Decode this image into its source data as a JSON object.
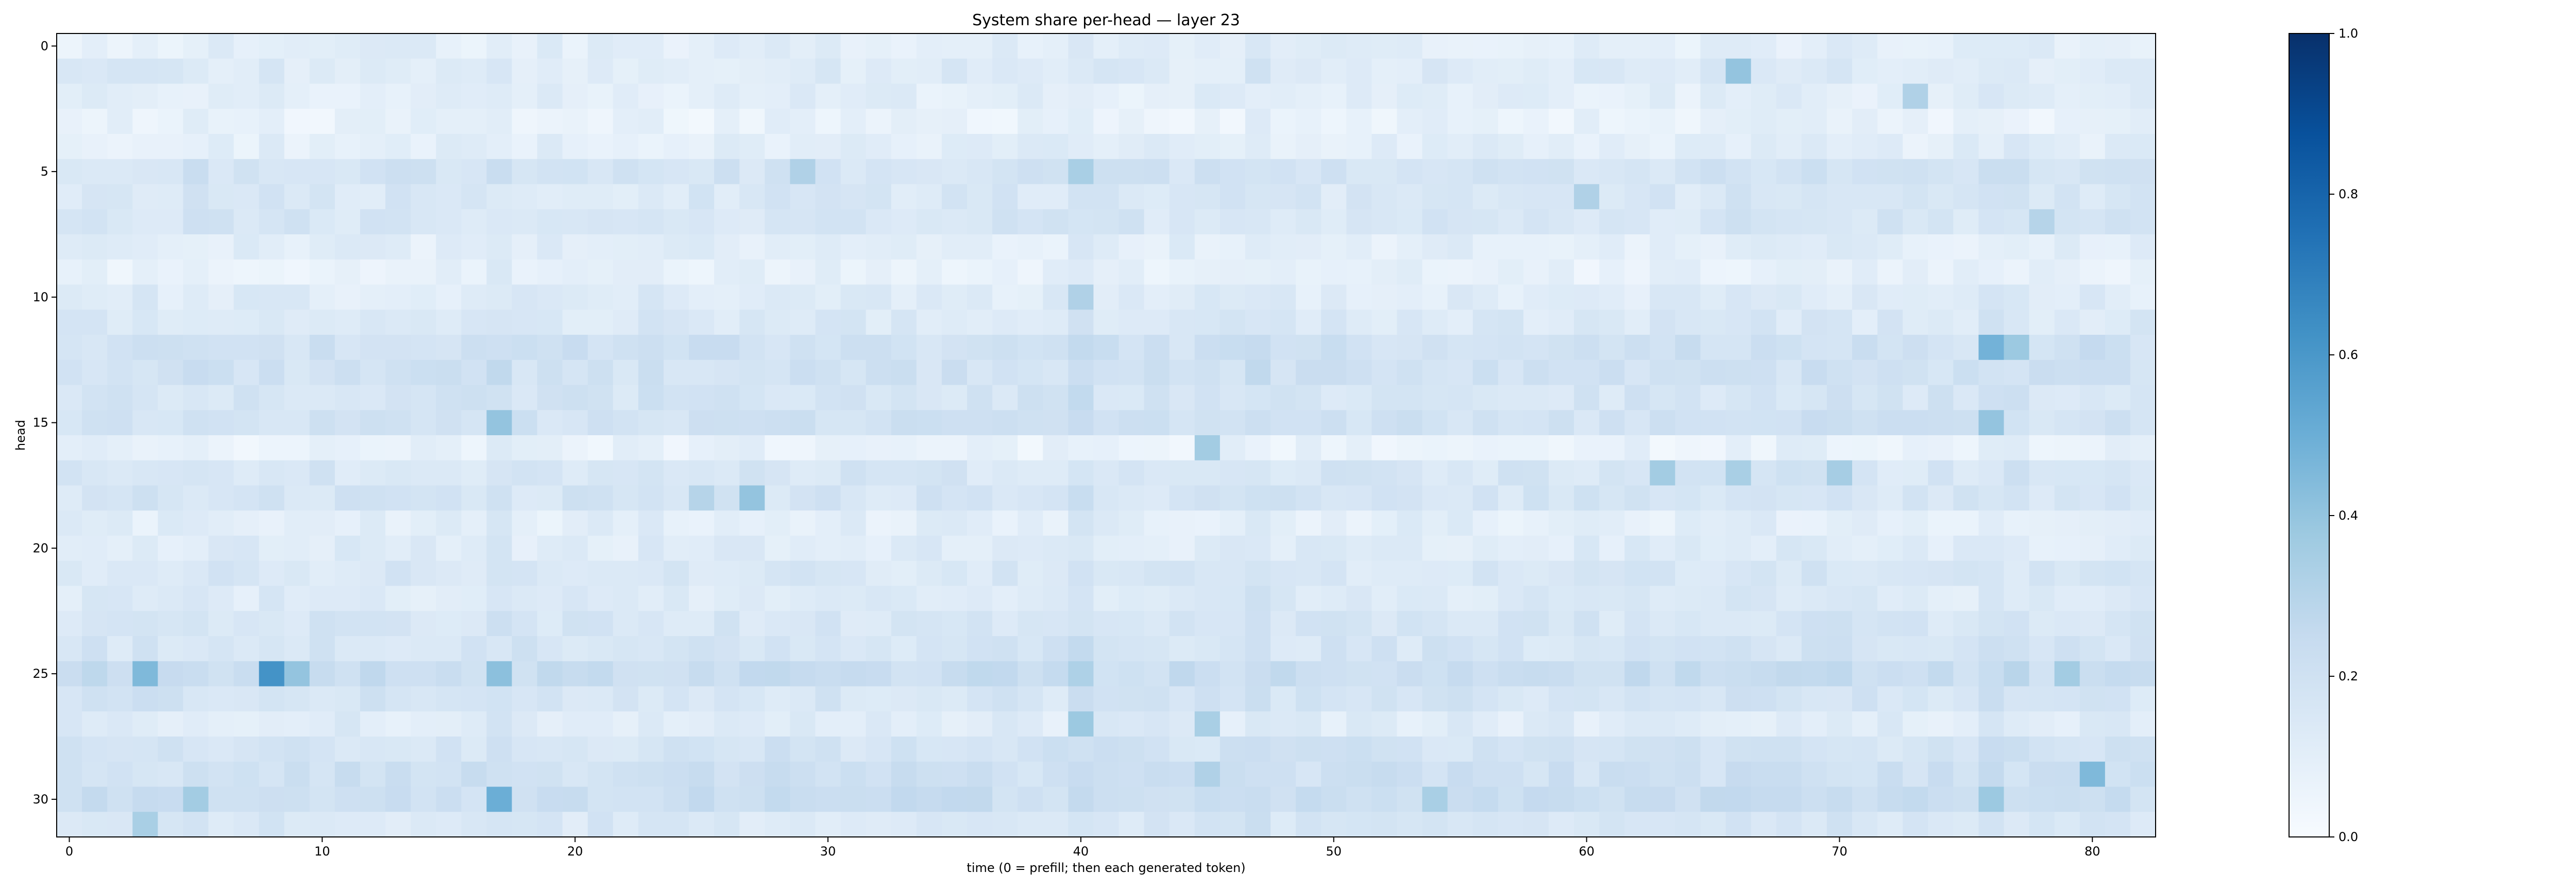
{
  "chart_data": {
    "type": "heatmap",
    "title": "System share per-head — layer 23",
    "xlabel": "time (0 = prefill; then each generated token)",
    "ylabel": "head",
    "x_range": [
      0,
      82
    ],
    "y_range": [
      0,
      31
    ],
    "x_ticks": [
      0,
      10,
      20,
      30,
      40,
      50,
      60,
      70,
      80
    ],
    "y_ticks": [
      0,
      5,
      10,
      15,
      20,
      25,
      30
    ],
    "colorbar": {
      "min": 0.0,
      "max": 1.0,
      "ticks": [
        "0.0",
        "0.2",
        "0.4",
        "0.6",
        "0.8",
        "1.0"
      ],
      "colormap": "Blues"
    },
    "n_cols": 83,
    "n_rows": 32,
    "base_level": 0.12,
    "row_levels": [
      0.1,
      0.13,
      0.1,
      0.07,
      0.1,
      0.18,
      0.15,
      0.16,
      0.1,
      0.08,
      0.12,
      0.14,
      0.2,
      0.19,
      0.17,
      0.19,
      0.07,
      0.16,
      0.17,
      0.1,
      0.12,
      0.15,
      0.13,
      0.16,
      0.17,
      0.23,
      0.17,
      0.12,
      0.18,
      0.2,
      0.22,
      0.15
    ],
    "col_levels": [
      0.0,
      0.0,
      0.0,
      0.01,
      0.0,
      0.01,
      0.0,
      0.0,
      0.01,
      0.0,
      0.0,
      0.0,
      0.0,
      0.0,
      0.0,
      0.0,
      0.0,
      0.03,
      0.0,
      0.0,
      0.0,
      0.0,
      0.0,
      0.01,
      0.0,
      0.0,
      0.0,
      0.0,
      0.0,
      0.0,
      0.0,
      0.0,
      0.0,
      0.0,
      0.0,
      0.0,
      0.0,
      0.0,
      0.0,
      0.0,
      0.05,
      0.0,
      0.0,
      0.0,
      0.0,
      0.0,
      0.0,
      0.04,
      0.0,
      0.0,
      0.0,
      0.0,
      0.0,
      0.0,
      0.0,
      0.0,
      0.0,
      0.0,
      0.0,
      0.0,
      0.0,
      0.0,
      0.0,
      0.0,
      0.0,
      0.0,
      0.01,
      0.01,
      0.01,
      0.01,
      0.01,
      0.0,
      0.0,
      0.0,
      0.0,
      0.0,
      0.02,
      0.02,
      0.0,
      0.0,
      0.01,
      0.0,
      0.0
    ],
    "hotspots": [
      {
        "x": 3,
        "y": 25,
        "v": 0.45
      },
      {
        "x": 8,
        "y": 25,
        "v": 0.62
      },
      {
        "x": 9,
        "y": 25,
        "v": 0.4
      },
      {
        "x": 17,
        "y": 25,
        "v": 0.42
      },
      {
        "x": 17,
        "y": 15,
        "v": 0.4
      },
      {
        "x": 17,
        "y": 30,
        "v": 0.5
      },
      {
        "x": 27,
        "y": 18,
        "v": 0.4
      },
      {
        "x": 25,
        "y": 18,
        "v": 0.3
      },
      {
        "x": 29,
        "y": 5,
        "v": 0.32
      },
      {
        "x": 40,
        "y": 5,
        "v": 0.34
      },
      {
        "x": 40,
        "y": 10,
        "v": 0.32
      },
      {
        "x": 40,
        "y": 27,
        "v": 0.38
      },
      {
        "x": 45,
        "y": 16,
        "v": 0.36
      },
      {
        "x": 45,
        "y": 27,
        "v": 0.34
      },
      {
        "x": 45,
        "y": 29,
        "v": 0.32
      },
      {
        "x": 66,
        "y": 1,
        "v": 0.4
      },
      {
        "x": 60,
        "y": 6,
        "v": 0.32
      },
      {
        "x": 54,
        "y": 30,
        "v": 0.34
      },
      {
        "x": 63,
        "y": 17,
        "v": 0.36
      },
      {
        "x": 66,
        "y": 17,
        "v": 0.34
      },
      {
        "x": 70,
        "y": 17,
        "v": 0.35
      },
      {
        "x": 76,
        "y": 12,
        "v": 0.48
      },
      {
        "x": 77,
        "y": 12,
        "v": 0.38
      },
      {
        "x": 76,
        "y": 15,
        "v": 0.4
      },
      {
        "x": 76,
        "y": 30,
        "v": 0.38
      },
      {
        "x": 79,
        "y": 25,
        "v": 0.36
      },
      {
        "x": 80,
        "y": 29,
        "v": 0.45
      },
      {
        "x": 73,
        "y": 2,
        "v": 0.32
      },
      {
        "x": 78,
        "y": 7,
        "v": 0.3
      },
      {
        "x": 3,
        "y": 31,
        "v": 0.34
      },
      {
        "x": 5,
        "y": 30,
        "v": 0.36
      }
    ]
  }
}
